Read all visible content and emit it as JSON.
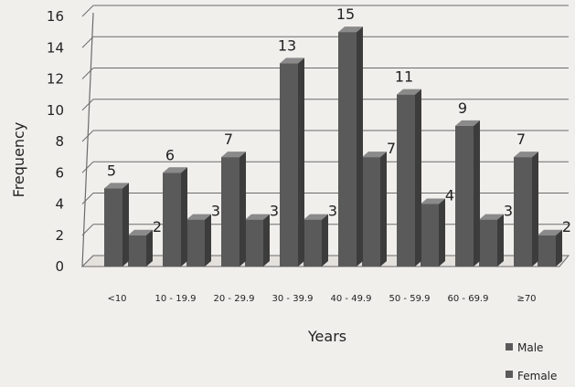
{
  "chart_data": {
    "type": "bar",
    "style": "3d-clustered-column",
    "categories": [
      "<10",
      "10 - 19.9",
      "20 - 29.9",
      "30 - 39.9",
      "40 - 49.9",
      "50 - 59.9",
      "60 - 69.9",
      "≥70"
    ],
    "series": [
      {
        "name": "Male",
        "values": [
          5,
          6,
          7,
          13,
          15,
          11,
          9,
          7
        ],
        "color": "#5a5a5a"
      },
      {
        "name": "Female",
        "values": [
          2,
          3,
          3,
          3,
          7,
          4,
          3,
          2
        ],
        "color": "#5a5a5a"
      }
    ],
    "title": "",
    "xlabel": "Years",
    "ylabel": "Frequency",
    "ylim": [
      0,
      16
    ],
    "yticks": [
      0,
      2,
      4,
      6,
      8,
      10,
      12,
      14,
      16
    ],
    "grid": true,
    "legend_position": "bottom-right",
    "data_labels": true
  },
  "colors": {
    "background": "#f1efec",
    "bar_front": "#5a5a5a",
    "bar_side": "#3c3c3c",
    "bar_top": "#8a8a8a",
    "grid": "#6b6b6b",
    "text": "#222222"
  }
}
